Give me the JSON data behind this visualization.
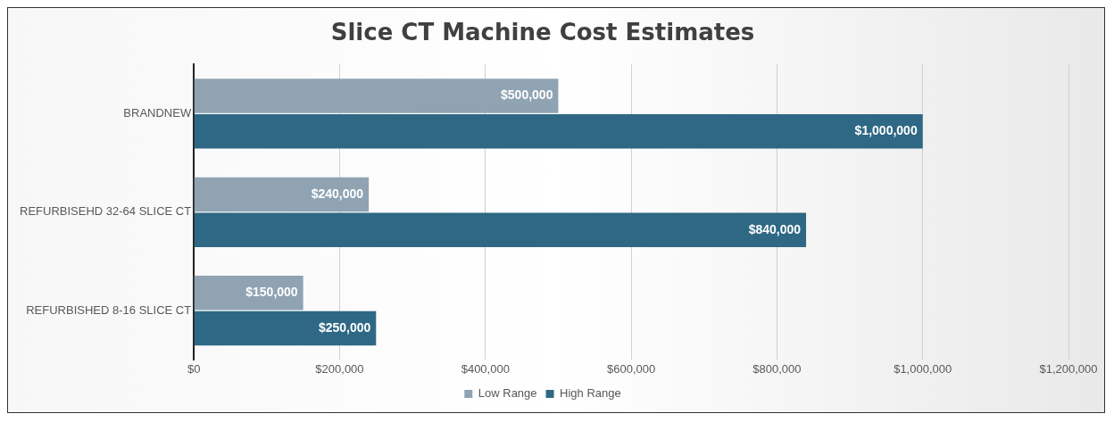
{
  "chart_data": {
    "type": "bar",
    "orientation": "horizontal",
    "title": "Slice CT Machine Cost Estimates",
    "categories": [
      "BRANDNEW",
      "REFURBISEHD 32-64 SLICE CT",
      "REFURBISHED 8-16 SLICE CT"
    ],
    "series": [
      {
        "name": "Low Range",
        "color": "#8fa3b3",
        "values": [
          500000,
          240000,
          150000
        ],
        "value_labels": [
          "$500,000",
          "$240,000",
          "$150,000"
        ]
      },
      {
        "name": "High Range",
        "color": "#2e6884",
        "values": [
          1000000,
          840000,
          250000
        ],
        "value_labels": [
          "$1,000,000",
          "$840,000",
          "$250,000"
        ]
      }
    ],
    "xlim": [
      0,
      1200000
    ],
    "xticks": [
      {
        "value": 0,
        "label": "$0"
      },
      {
        "value": 200000,
        "label": "$200,000"
      },
      {
        "value": 400000,
        "label": "$400,000"
      },
      {
        "value": 600000,
        "label": "$600,000"
      },
      {
        "value": 800000,
        "label": "$800,000"
      },
      {
        "value": 1000000,
        "label": "$1,000,000"
      },
      {
        "value": 1200000,
        "label": "$1,200,000"
      }
    ],
    "grid": "x",
    "legend": "bottom"
  }
}
